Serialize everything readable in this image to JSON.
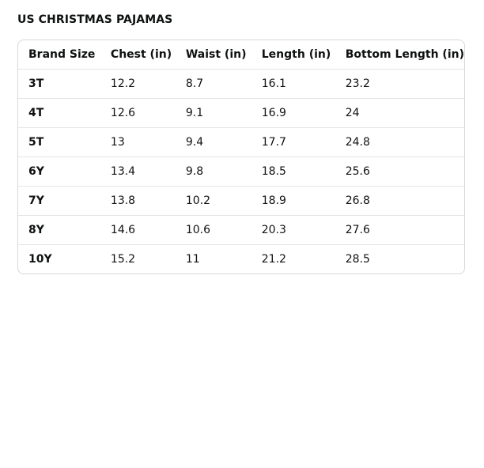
{
  "header": {
    "title": "US CHRISTMAS PAJAMAS"
  },
  "table": {
    "columns": [
      "Brand Size",
      "Chest (in)",
      "Waist (in)",
      "Length (in)",
      "Bottom Length (in)"
    ],
    "rows": [
      [
        "3T",
        "12.2",
        "8.7",
        "16.1",
        "23.2"
      ],
      [
        "4T",
        "12.6",
        "9.1",
        "16.9",
        "24"
      ],
      [
        "5T",
        "13",
        "9.4",
        "17.7",
        "24.8"
      ],
      [
        "6Y",
        "13.4",
        "9.8",
        "18.5",
        "25.6"
      ],
      [
        "7Y",
        "13.8",
        "10.2",
        "18.9",
        "26.8"
      ],
      [
        "8Y",
        "14.6",
        "10.6",
        "20.3",
        "27.6"
      ],
      [
        "10Y",
        "15.2",
        "11",
        "21.2",
        "28.5"
      ]
    ]
  }
}
